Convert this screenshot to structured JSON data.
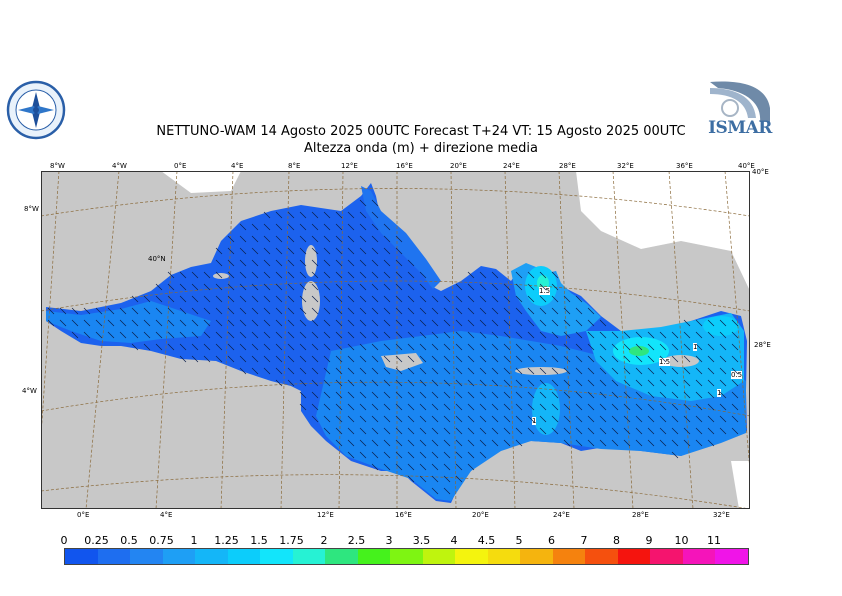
{
  "header": {
    "title_line1": "NETTUNO-WAM  14   Agosto  2025 00UTC Forecast T+24 VT: 15   Agosto  2025 00UTC",
    "title_line2": "Altezza onda (m) + direzione media"
  },
  "logos": {
    "left": {
      "name": "meteo-service-emblem"
    },
    "right": {
      "text": "ISMAR"
    }
  },
  "map": {
    "top_lon_labels": [
      "8°W",
      "4°W",
      "0°E",
      "4°E",
      "8°E",
      "12°E",
      "16°E",
      "20°E",
      "24°E",
      "28°E",
      "32°E",
      "36°E",
      "40°E"
    ],
    "top_right_lat_label": "40°E",
    "left_lat_labels": [
      "8°W",
      "4°W"
    ],
    "inner_lat_label": "40°N",
    "right_lat_label": "28°E",
    "bottom_lon_labels": [
      "0°E",
      "4°E",
      "12°E",
      "16°E",
      "20°E",
      "24°E",
      "28°E",
      "32°E"
    ],
    "contour_labels": [
      "1.5",
      "1.5",
      "1",
      "0.5",
      "1",
      "1"
    ],
    "colors": {
      "land": "#c8c8c8",
      "frame": "#333333",
      "grid": "#8a6a3a"
    }
  },
  "legend": {
    "labels": [
      "0",
      "0.25",
      "0.5",
      "0.75",
      "1",
      "1.25",
      "1.5",
      "1.75",
      "2",
      "2.5",
      "3",
      "3.5",
      "4",
      "4.5",
      "5",
      "6",
      "7",
      "8",
      "9",
      "10",
      "11"
    ],
    "colors": [
      "#1155ee",
      "#1e6ef0",
      "#2385f2",
      "#1e9ff5",
      "#14b6f8",
      "#0ccdfb",
      "#12e5fb",
      "#26f2d4",
      "#2ee67f",
      "#45f21c",
      "#7ef512",
      "#bff40e",
      "#f4f40e",
      "#f5dc0e",
      "#f5b40e",
      "#f5820e",
      "#f5500e",
      "#f5140e",
      "#f5146e",
      "#f514ba",
      "#f014e8"
    ]
  }
}
